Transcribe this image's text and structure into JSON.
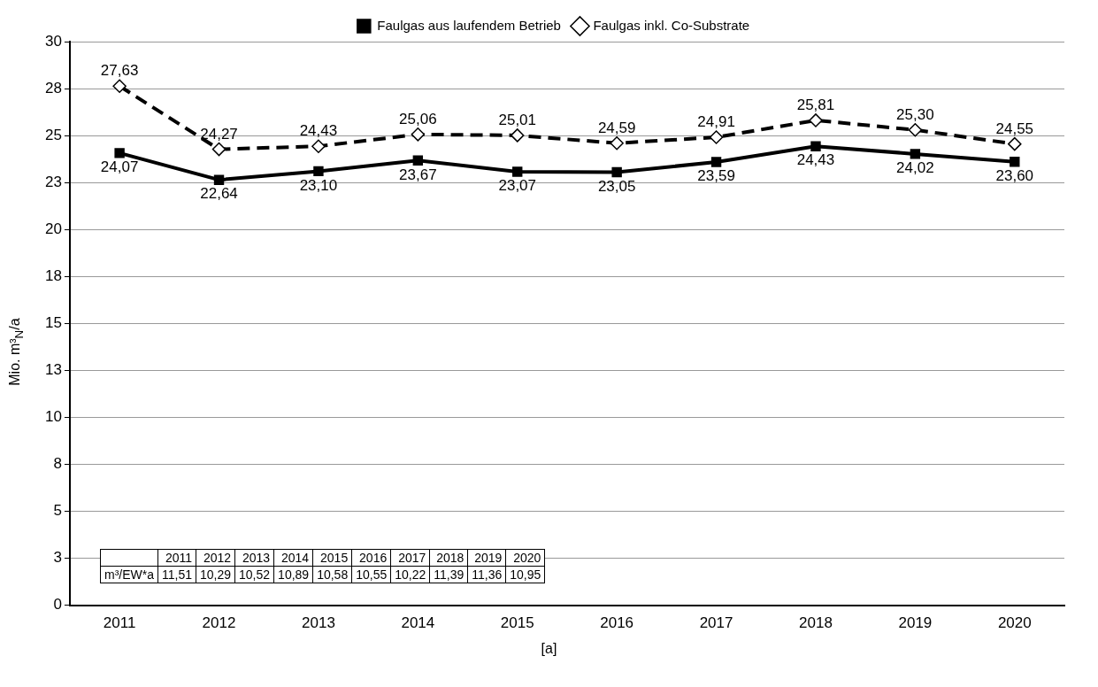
{
  "chart_data": {
    "type": "line",
    "ylabel": "Mio. m³$_{N}$/a",
    "xlabel": "[a]",
    "categories": [
      "2011",
      "2012",
      "2013",
      "2014",
      "2015",
      "2016",
      "2017",
      "2018",
      "2019",
      "2020"
    ],
    "series": [
      {
        "name": "Faulgas aus laufendem Betrieb",
        "color": "#000000",
        "marker": "square",
        "line_style": "solid",
        "values": [
          24.07,
          22.64,
          23.1,
          23.67,
          23.07,
          23.05,
          23.59,
          24.43,
          24.02,
          23.6
        ],
        "value_labels": [
          "24,07",
          "22,64",
          "23,10",
          "23,67",
          "23,07",
          "23,05",
          "23,59",
          "24,43",
          "24,02",
          "23,60"
        ]
      },
      {
        "name": "Faulgas inkl. Co-Substrate",
        "color": "#000000",
        "marker": "diamond",
        "line_style": "dashed",
        "values": [
          27.63,
          24.27,
          24.43,
          25.06,
          25.01,
          24.59,
          24.91,
          25.81,
          25.3,
          24.55
        ],
        "value_labels": [
          "27,63",
          "24,27",
          "24,43",
          "25,06",
          "25,01",
          "24,59",
          "24,91",
          "25,81",
          "25,30",
          "24,55"
        ]
      }
    ],
    "ylim": [
      0,
      30
    ],
    "yticks": [
      0,
      {
        "value": 2.5,
        "label": "3"
      },
      5,
      {
        "value": 7.5,
        "label": "8"
      },
      10,
      {
        "value": 12.5,
        "label": "13"
      },
      15,
      {
        "value": 17.5,
        "label": "18"
      },
      20,
      {
        "value": 22.5,
        "label": "23"
      },
      25,
      {
        "value": 27.5,
        "label": "28"
      },
      30
    ],
    "grid": "y",
    "legend": "top",
    "annotations": [
      "m³/EW*a",
      "11,51",
      "10,29",
      "10,52",
      "10,89",
      "10,58",
      "10,55",
      "10,22",
      "11,39",
      "11,36",
      "10,95"
    ]
  }
}
